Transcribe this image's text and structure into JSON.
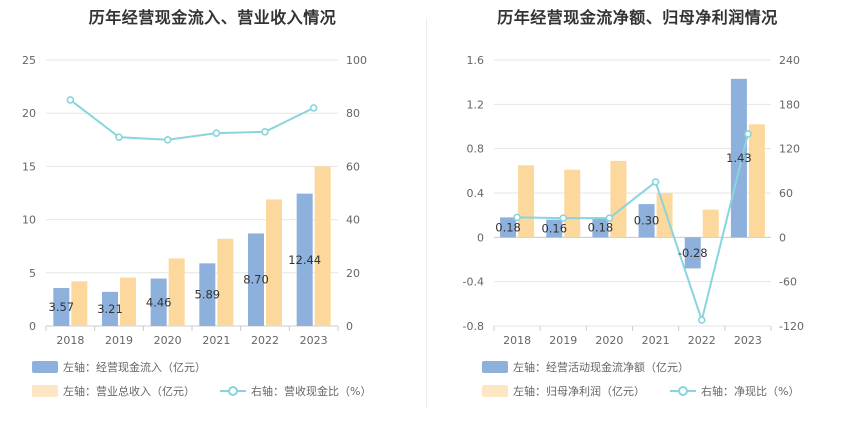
{
  "colors": {
    "bar_primary": "#8eb0dc",
    "bar_secondary": "#fdd89c",
    "line": "#8ad4dc",
    "grid": "#e6e6e6",
    "axis": "#cccccc"
  },
  "chart_data": [
    {
      "type": "bar",
      "title": "历年经营现金流入、营业收入情况",
      "categories": [
        "2018",
        "2019",
        "2020",
        "2021",
        "2022",
        "2023"
      ],
      "series": [
        {
          "name": "左轴：经营现金流入（亿元）",
          "axis": "left",
          "values": [
            3.57,
            3.21,
            4.46,
            5.89,
            8.7,
            12.44
          ],
          "labels": [
            "3.57",
            "3.21",
            "4.46",
            "5.89",
            "8.70",
            "12.44"
          ]
        },
        {
          "name": "左轴：营业总收入（亿元）",
          "axis": "left",
          "values": [
            4.2,
            4.55,
            6.35,
            8.2,
            11.9,
            15.0
          ]
        },
        {
          "name": "右轴：营收现金比（%）",
          "type": "line",
          "axis": "right",
          "values": [
            85,
            71,
            70,
            72.5,
            73,
            82
          ]
        }
      ],
      "left_ticks": [
        "0",
        "5",
        "10",
        "15",
        "20",
        "25"
      ],
      "right_ticks": [
        "0",
        "20",
        "40",
        "60",
        "80",
        "100"
      ],
      "ylim_left": [
        0,
        25
      ],
      "ylim_right": [
        0,
        100
      ],
      "grid": true,
      "legend_position": "bottom-left"
    },
    {
      "type": "bar",
      "title": "历年经营现金流净额、归母净利润情况",
      "categories": [
        "2018",
        "2019",
        "2020",
        "2021",
        "2022",
        "2023"
      ],
      "series": [
        {
          "name": "左轴：经营活动现金流净额（亿元）",
          "axis": "left",
          "values": [
            0.18,
            0.16,
            0.18,
            0.3,
            -0.28,
            1.43
          ],
          "labels": [
            "0.18",
            "0.16",
            "0.18",
            "0.30",
            "-0.28",
            "1.43"
          ]
        },
        {
          "name": "左轴：归母净利润（亿元）",
          "axis": "left",
          "values": [
            0.65,
            0.61,
            0.69,
            0.4,
            0.25,
            1.02
          ]
        },
        {
          "name": "右轴：净现比（%）",
          "type": "line",
          "axis": "right",
          "values": [
            27,
            26,
            26,
            75,
            -112,
            140
          ]
        }
      ],
      "left_ticks": [
        "-0.8",
        "-0.4",
        "0",
        "0.4",
        "0.8",
        "1.2",
        "1.6"
      ],
      "right_ticks": [
        "-120",
        "-60",
        "0",
        "60",
        "120",
        "180",
        "240"
      ],
      "ylim_left": [
        -0.8,
        1.6
      ],
      "ylim_right": [
        -120,
        240
      ],
      "grid": true,
      "legend_position": "bottom-left"
    }
  ]
}
